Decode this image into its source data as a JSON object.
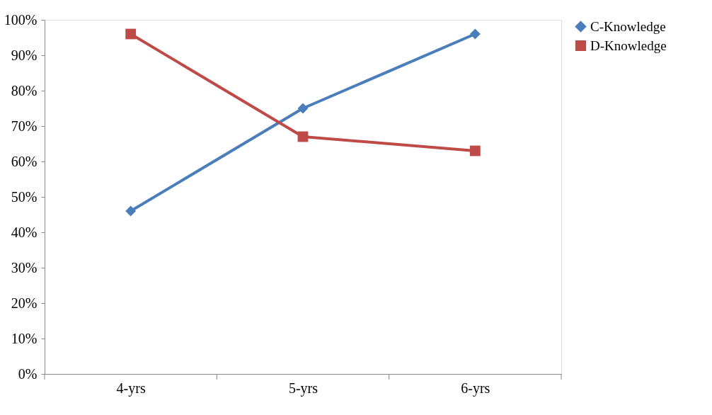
{
  "chart_data": {
    "type": "line",
    "categories": [
      "4-yrs",
      "5-yrs",
      "6-yrs"
    ],
    "series": [
      {
        "name": "C-Knowledge",
        "color": "#4a7ebb",
        "marker": "diamond",
        "values": [
          46,
          75,
          96
        ]
      },
      {
        "name": "D-Knowledge",
        "color": "#be4b48",
        "marker": "square",
        "values": [
          96,
          67,
          63
        ]
      }
    ],
    "ylim": [
      0,
      100
    ],
    "yticks": [
      {
        "value": 0,
        "label": "0%"
      },
      {
        "value": 10,
        "label": "10%"
      },
      {
        "value": 20,
        "label": "20%"
      },
      {
        "value": 30,
        "label": "30%"
      },
      {
        "value": 40,
        "label": "40%"
      },
      {
        "value": 50,
        "label": "50%"
      },
      {
        "value": 60,
        "label": "60%"
      },
      {
        "value": 70,
        "label": "70%"
      },
      {
        "value": 80,
        "label": "80%"
      },
      {
        "value": 90,
        "label": "90%"
      },
      {
        "value": 100,
        "label": "100%"
      }
    ],
    "grid": false,
    "legend": "right"
  }
}
